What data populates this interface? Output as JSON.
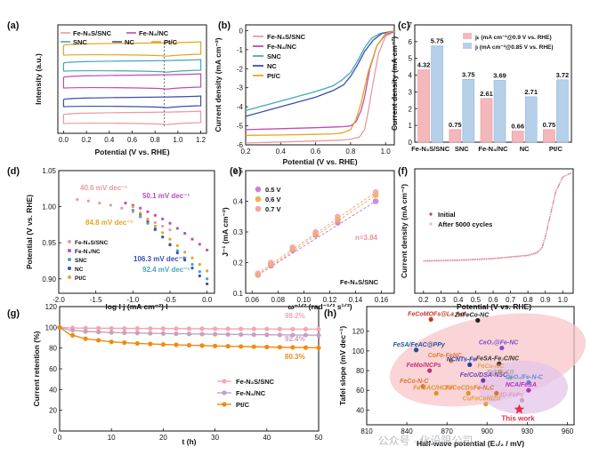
{
  "colors": {
    "snc": "#e89aa0",
    "nc4": "#b84fb8",
    "sncT": "#45a8b8",
    "nc": "#3a4fb0",
    "pt": "#e6a525",
    "kinetic": "#b6d0ea",
    "lim": "#f2b8bc",
    "g_snc": "#f4a6b2",
    "g_n4": "#c8a0c0",
    "g_pt": "#f08a10"
  },
  "a": {
    "label": "(a)",
    "xlabel": "Potential (V vs. RHE)",
    "ylabel": "Intensity (a.u.)",
    "xticks": [
      "0.0",
      "0.2",
      "0.4",
      "0.6",
      "0.8",
      "1.0",
      "1.2"
    ],
    "legend": [
      "Fe-N₃S/SNC",
      "Fe-N₄/NC",
      "SNC",
      "NC",
      "Pt/C"
    ]
  },
  "b": {
    "label": "(b)",
    "xlabel": "Potential (V vs. RHE)",
    "ylabel": "Current density (mA cm⁻²)",
    "xticks": [
      "0.2",
      "0.4",
      "0.6",
      "0.8",
      "1.0"
    ],
    "yticks": [
      "-6",
      "-5",
      "-4",
      "-3",
      "-2",
      "-1",
      "0"
    ],
    "legend": [
      "Fe-N₃S/SNC",
      "Fe-N₄/NC",
      "SNC",
      "NC",
      "Pt/C"
    ]
  },
  "c": {
    "label": "(c)",
    "ylabel": "Current density (mA cm⁻²)",
    "legend": [
      "jₖ (mA cm⁻²@0.9 V vs. RHE)",
      "jₗ (mA cm⁻²@0.85 V vs. RHE)"
    ],
    "yticks": [
      "0",
      "1",
      "2",
      "3",
      "4",
      "5",
      "6",
      "7"
    ]
  },
  "d": {
    "label": "(d)",
    "xlabel": "log I j (mA cm⁻²) I",
    "ylabel": "Potential (V vs. RHE)",
    "xticks": [
      "-2.0",
      "-1.5",
      "-1.0",
      "-0.5",
      "0.0"
    ],
    "yticks": [
      "0.90",
      "0.95",
      "1.00",
      "1.05"
    ],
    "legend": [
      "Fe-N₃S/SNC",
      "Fe-N₄/NC",
      "SNC",
      "NC",
      "Pt/C"
    ],
    "annotations": [
      "40.6 mV dec⁻¹",
      "50.1 mV dec⁻¹",
      "84.8 mV dec⁻¹",
      "106.3 mV dec⁻¹",
      "92.4 mV dec⁻¹"
    ]
  },
  "e": {
    "label": "(e)",
    "xlabel": "ω⁻¹ᐟ² (rad⁻¹ᐟ² s¹ᐟ²)",
    "ylabel": "J⁻¹ (mA cm⁻²)",
    "xticks": [
      "0.06",
      "0.08",
      "0.10",
      "0.12",
      "0.14",
      "0.16"
    ],
    "yticks": [
      "0.1",
      "0.2",
      "0.3",
      "0.4",
      "0.5"
    ],
    "legend": [
      "0.5 V",
      "0.6 V",
      "0.7 V"
    ],
    "n_label": "n=3.84",
    "sample": "Fe-N₃S/SNC"
  },
  "f": {
    "label": "(f)",
    "xlabel": "Potential (V vs. RHE)",
    "ylabel": "Current density (mA cm⁻²)",
    "xticks": [
      "0.2",
      "0.3",
      "0.4",
      "0.5",
      "0.6",
      "0.7",
      "0.8",
      "0.9",
      "1.0"
    ],
    "legend": [
      "Initial",
      "After 5000 cycles"
    ]
  },
  "g": {
    "label": "(g)",
    "xlabel": "t (h)",
    "ylabel": "Current retention (%)",
    "xticks": [
      "0",
      "10",
      "20",
      "30",
      "40",
      "50"
    ],
    "yticks": [
      "0",
      "20",
      "40",
      "60",
      "80",
      "100",
      "120"
    ],
    "legend": [
      "Fe-N₃S/SNC",
      "Fe-N₄/NC",
      "Pt/C"
    ],
    "end_labels": [
      "98.2%",
      "92.4%",
      "80.3%"
    ]
  },
  "h": {
    "label": "(h)",
    "xlabel": "Half-wave potential (E₁/₂ / mV)",
    "ylabel": "Tafel slope (mV dec⁻¹)",
    "xticks": [
      "810",
      "840",
      "870",
      "900",
      "930",
      "960"
    ],
    "yticks": [
      "40",
      "60",
      "80",
      "100",
      "120"
    ],
    "this_work": "This work"
  },
  "watermark": "公众号 · 化设限公司",
  "chart_data": [
    {
      "panel": "a",
      "type": "line",
      "title": "",
      "xlim": [
        0,
        1.2
      ],
      "series": [
        {
          "name": "Pt/C",
          "offset": 4
        },
        {
          "name": "SNC",
          "offset": 3
        },
        {
          "name": "Fe-N₄/NC",
          "offset": 2
        },
        {
          "name": "NC",
          "offset": 1
        },
        {
          "name": "Fe-N₃S/SNC",
          "offset": 0
        }
      ]
    },
    {
      "panel": "b",
      "type": "line",
      "xlim": [
        0.2,
        1.05
      ],
      "ylim": [
        -6,
        0.3
      ],
      "series": [
        {
          "name": "Fe-N₃S/SNC",
          "x": [
            0.2,
            0.4,
            0.6,
            0.75,
            0.8,
            0.85,
            0.88,
            0.9,
            0.93,
            0.96,
            1.0,
            1.05
          ],
          "y": [
            -5.9,
            -5.85,
            -5.8,
            -5.75,
            -5.7,
            -5.6,
            -5.2,
            -4.3,
            -2.7,
            -1.2,
            -0.3,
            -0.05
          ]
        },
        {
          "name": "Fe-N₄/NC",
          "x": [
            0.2,
            0.4,
            0.6,
            0.75,
            0.8,
            0.83,
            0.86,
            0.88,
            0.91,
            0.95,
            1.0,
            1.05
          ],
          "y": [
            -5.2,
            -5.15,
            -5.1,
            -5.05,
            -5.0,
            -4.8,
            -4.2,
            -3.5,
            -2.0,
            -0.8,
            -0.2,
            -0.05
          ]
        },
        {
          "name": "SNC",
          "x": [
            0.2,
            0.4,
            0.6,
            0.7,
            0.75,
            0.8,
            0.84,
            0.88,
            0.92,
            0.97,
            1.05
          ],
          "y": [
            -4.2,
            -3.7,
            -3.2,
            -2.9,
            -2.6,
            -2.2,
            -1.6,
            -0.9,
            -0.4,
            -0.15,
            -0.02
          ]
        },
        {
          "name": "NC",
          "x": [
            0.2,
            0.4,
            0.6,
            0.7,
            0.76,
            0.8,
            0.84,
            0.88,
            0.93,
            0.98,
            1.05
          ],
          "y": [
            -4.5,
            -4.0,
            -3.5,
            -3.15,
            -2.85,
            -2.4,
            -1.8,
            -1.1,
            -0.5,
            -0.15,
            -0.02
          ]
        },
        {
          "name": "Pt/C",
          "x": [
            0.2,
            0.4,
            0.6,
            0.7,
            0.75,
            0.8,
            0.83,
            0.86,
            0.9,
            0.95,
            1.0,
            1.05
          ],
          "y": [
            -5.5,
            -5.48,
            -5.45,
            -5.42,
            -5.38,
            -5.2,
            -4.7,
            -3.8,
            -2.2,
            -0.8,
            -0.15,
            -0.02
          ]
        }
      ]
    },
    {
      "panel": "c",
      "type": "bar",
      "categories": [
        "Fe-N₃S/SNC",
        "SNC",
        "Fe-N₄/NC",
        "NC",
        "Pt/C"
      ],
      "ylim": [
        0,
        7
      ],
      "series": [
        {
          "name": "jₖ (mA cm⁻²@0.9 V vs. RHE)",
          "values": [
            4.32,
            0.75,
            2.61,
            0.66,
            0.75
          ]
        },
        {
          "name": "jₗ (mA cm⁻²@0.85 V vs. RHE)",
          "values": [
            5.75,
            3.75,
            3.69,
            2.71,
            3.72
          ]
        }
      ]
    },
    {
      "panel": "d",
      "type": "scatter",
      "xlim": [
        -2.0,
        0.1
      ],
      "ylim": [
        0.88,
        1.05
      ],
      "series": [
        {
          "name": "Fe-N₃S/SNC",
          "x": [
            -1.75,
            -1.6,
            -1.45,
            -1.3,
            -1.15,
            -1.0,
            -0.9,
            -0.8,
            -0.7,
            -0.6,
            -0.5
          ],
          "y": [
            1.01,
            1.008,
            1.005,
            1.002,
            0.998,
            0.993,
            0.988,
            0.983,
            0.978,
            0.973,
            0.968
          ]
        },
        {
          "name": "Fe-N₄/NC",
          "x": [
            -1.1,
            -1.0,
            -0.9,
            -0.8,
            -0.7,
            -0.6,
            -0.5,
            -0.4,
            -0.3,
            -0.2,
            -0.1,
            0.0
          ],
          "y": [
            1.005,
            1.002,
            0.998,
            0.993,
            0.988,
            0.983,
            0.977,
            0.97,
            0.963,
            0.955,
            0.948,
            0.94
          ]
        },
        {
          "name": "SNC",
          "x": [
            -1.0,
            -0.9,
            -0.8,
            -0.7,
            -0.6,
            -0.5,
            -0.4,
            -0.3,
            -0.2,
            -0.1,
            0.0
          ],
          "y": [
            0.995,
            0.986,
            0.977,
            0.968,
            0.958,
            0.948,
            0.939,
            0.929,
            0.92,
            0.91,
            0.9
          ]
        },
        {
          "name": "NC",
          "x": [
            -0.9,
            -0.8,
            -0.7,
            -0.6,
            -0.5,
            -0.4,
            -0.3,
            -0.2,
            -0.1,
            0.0
          ],
          "y": [
            0.99,
            0.98,
            0.969,
            0.958,
            0.947,
            0.936,
            0.926,
            0.915,
            0.904,
            0.893
          ]
        },
        {
          "name": "Pt/C",
          "x": [
            -1.0,
            -0.9,
            -0.8,
            -0.7,
            -0.6,
            -0.5,
            -0.4,
            -0.3,
            -0.2,
            -0.1,
            0.0
          ],
          "y": [
            1.0,
            0.991,
            0.982,
            0.973,
            0.964,
            0.955,
            0.946,
            0.937,
            0.929,
            0.92,
            0.911
          ]
        }
      ]
    },
    {
      "panel": "e",
      "type": "scatter",
      "xlim": [
        0.055,
        0.17
      ],
      "ylim": [
        0.1,
        0.5
      ],
      "series": [
        {
          "name": "0.5 V",
          "x": [
            0.0645,
            0.0745,
            0.0913,
            0.1091,
            0.1262,
            0.1556
          ],
          "y": [
            0.16,
            0.19,
            0.24,
            0.29,
            0.33,
            0.4
          ]
        },
        {
          "name": "0.6 V",
          "x": [
            0.0645,
            0.0745,
            0.0913,
            0.1091,
            0.1262,
            0.1556
          ],
          "y": [
            0.16,
            0.195,
            0.245,
            0.295,
            0.34,
            0.42
          ]
        },
        {
          "name": "0.7 V",
          "x": [
            0.0645,
            0.0745,
            0.0913,
            0.1091,
            0.1262,
            0.1556
          ],
          "y": [
            0.165,
            0.2,
            0.25,
            0.3,
            0.35,
            0.43
          ]
        }
      ]
    },
    {
      "panel": "f",
      "type": "line",
      "xlim": [
        0.2,
        1.05
      ],
      "series": [
        {
          "name": "Initial",
          "x": [
            0.2,
            0.4,
            0.6,
            0.8,
            0.85,
            0.88,
            0.9,
            0.93,
            0.96,
            1.0,
            1.05
          ],
          "y": [
            -5.5,
            -5.45,
            -5.35,
            -5.15,
            -5.0,
            -4.7,
            -4.0,
            -2.6,
            -1.2,
            -0.3,
            -0.05
          ]
        },
        {
          "name": "After 5000 cycles",
          "x": [
            0.2,
            0.4,
            0.6,
            0.8,
            0.85,
            0.88,
            0.9,
            0.93,
            0.96,
            1.0,
            1.05
          ],
          "y": [
            -5.55,
            -5.5,
            -5.4,
            -5.2,
            -5.05,
            -4.75,
            -4.05,
            -2.65,
            -1.25,
            -0.32,
            -0.06
          ]
        }
      ]
    },
    {
      "panel": "g",
      "type": "line",
      "xlim": [
        0,
        50
      ],
      "ylim": [
        0,
        120
      ],
      "series": [
        {
          "name": "Fe-N₃S/SNC",
          "x": [
            0,
            2,
            5,
            10,
            20,
            30,
            40,
            50
          ],
          "y": [
            100,
            99.5,
            99.2,
            99,
            98.8,
            98.6,
            98.4,
            98.2
          ]
        },
        {
          "name": "Fe-N₄/NC",
          "x": [
            0,
            2,
            5,
            10,
            20,
            30,
            40,
            50
          ],
          "y": [
            100,
            97.5,
            96,
            95,
            94,
            93.3,
            92.8,
            92.4
          ]
        },
        {
          "name": "Pt/C",
          "x": [
            0,
            2,
            5,
            10,
            15,
            20,
            30,
            40,
            50
          ],
          "y": [
            100,
            93,
            89,
            86,
            84.5,
            83.5,
            82,
            81,
            80.3
          ]
        }
      ]
    },
    {
      "panel": "h",
      "type": "scatter",
      "xlim": [
        810,
        965
      ],
      "ylim": [
        25,
        145
      ],
      "points": [
        {
          "label": "FeCoMOFs@La AnI",
          "x": 858,
          "y": 132
        },
        {
          "label": "ZnFeCo-NC",
          "x": 893,
          "y": 131
        },
        {
          "label": "FeSA/FeAC@PPy",
          "x": 847,
          "y": 101
        },
        {
          "label": "CeO₂@Fe-NC",
          "x": 911,
          "y": 103
        },
        {
          "label": "CoFe-FeNC",
          "x": 873,
          "y": 90
        },
        {
          "label": "NCNTs-Fe",
          "x": 887,
          "y": 86
        },
        {
          "label": "FeSA-Fe₃C/NC",
          "x": 909,
          "y": 87
        },
        {
          "label": "FeMo/NCPs",
          "x": 857,
          "y": 80
        },
        {
          "label": "FeCu-NC",
          "x": 910,
          "y": 79
        },
        {
          "label": "Fe/Co/DSA-NSC",
          "x": 897,
          "y": 70
        },
        {
          "label": "FeNC-KB",
          "x": 917,
          "y": 73
        },
        {
          "label": "CeO₂/Fe-N-C",
          "x": 931,
          "y": 68
        },
        {
          "label": "FeCo-N-C",
          "x": 852,
          "y": 64
        },
        {
          "label": "Fe SAC/HCNF",
          "x": 862,
          "y": 57
        },
        {
          "label": "FeCoCDs",
          "x": 886,
          "y": 57
        },
        {
          "label": "Fe-NₓC",
          "x": 907,
          "y": 57
        },
        {
          "label": "NCA/FeSA",
          "x": 931,
          "y": 60
        },
        {
          "label": "CuFeCoNiZn",
          "x": 899,
          "y": 46
        },
        {
          "label": "3D-FePc",
          "x": 926,
          "y": 50
        },
        {
          "label": "This work",
          "x": 924,
          "y": 40.6
        }
      ]
    }
  ]
}
